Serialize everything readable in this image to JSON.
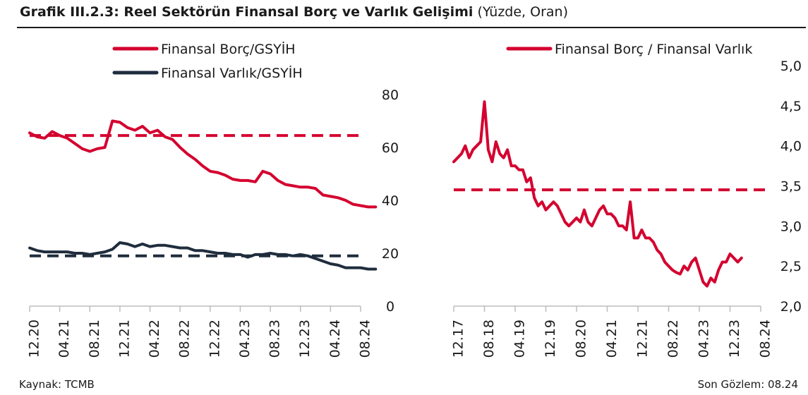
{
  "header": {
    "title": "Grafik III.2.3: Reel Sektörün Finansal Borç ve Varlık Gelişimi",
    "unit": "(Yüzde, Oran)"
  },
  "footer": {
    "source": "Kaynak: TCMB",
    "last_obs": "Son Gözlem: 08.24"
  },
  "colors": {
    "red": "#d4002f",
    "navy": "#1f2d3d",
    "grid": "#c8c8c8"
  },
  "chart_data": [
    {
      "type": "line",
      "x_ticks": [
        "12.20",
        "04.21",
        "08.21",
        "12.21",
        "04.22",
        "08.22",
        "12.22",
        "04.23",
        "08.23",
        "12.23",
        "04.24",
        "08.24"
      ],
      "y_ticks": [
        "0",
        "20",
        "40",
        "60",
        "80"
      ],
      "ylim": [
        0,
        80
      ],
      "grid": false,
      "legend_position": "top",
      "x_start": "2020-12",
      "series": [
        {
          "name": "Finansal Borç/GSYİH",
          "color": "#d4002f",
          "values": [
            65.5,
            64,
            63.5,
            66,
            64.5,
            63.5,
            61.5,
            59.5,
            58.5,
            59.5,
            60,
            70,
            69.5,
            67.5,
            66.5,
            68,
            65.5,
            66.5,
            64,
            63,
            60,
            57.5,
            55.5,
            53,
            51,
            50.5,
            49.5,
            48,
            47.5,
            47.5,
            47,
            51,
            50,
            47.5,
            46,
            45.5,
            45,
            45,
            44.5,
            42,
            41.5,
            41,
            40,
            38.5,
            38,
            37.5,
            37.5
          ]
        },
        {
          "name": "Finansal Varlık/GSYİH",
          "color": "#1f2d3d",
          "values": [
            22,
            21,
            20.5,
            20.5,
            20.5,
            20.5,
            20,
            20,
            19.5,
            20,
            20.5,
            21.5,
            24,
            23.5,
            22.5,
            23.5,
            22.5,
            23,
            23,
            22.5,
            22,
            22,
            21,
            21,
            20.5,
            20,
            20,
            19.5,
            19.5,
            18.5,
            19.5,
            19.5,
            20,
            19.5,
            19.5,
            19,
            19.5,
            19,
            18,
            17,
            16,
            15.5,
            14.5,
            14.5,
            14.5,
            14,
            14
          ]
        }
      ],
      "reference_lines": [
        {
          "color": "#d4002f",
          "value": 64.5
        },
        {
          "color": "#1f2d3d",
          "value": 19
        }
      ]
    },
    {
      "type": "line",
      "x_ticks": [
        "12.17",
        "08.18",
        "04.19",
        "12.19",
        "08.20",
        "04.21",
        "12.21",
        "08.22",
        "04.23",
        "12.23",
        "08.24"
      ],
      "y_ticks": [
        "2,0",
        "2,5",
        "3,0",
        "3,5",
        "4,0",
        "4,5",
        "5,0"
      ],
      "ylim": [
        2.0,
        5.0
      ],
      "grid": false,
      "legend_position": "top",
      "x_start": "2017-12",
      "series": [
        {
          "name": "Finansal Borç / Finansal Varlık",
          "color": "#d4002f",
          "values": [
            3.8,
            3.85,
            3.9,
            4.0,
            3.85,
            3.95,
            4.0,
            4.05,
            4.55,
            3.95,
            3.8,
            4.05,
            3.9,
            3.85,
            3.95,
            3.75,
            3.75,
            3.7,
            3.7,
            3.55,
            3.6,
            3.35,
            3.25,
            3.3,
            3.2,
            3.25,
            3.3,
            3.25,
            3.15,
            3.05,
            3.0,
            3.05,
            3.1,
            3.05,
            3.2,
            3.05,
            3.0,
            3.1,
            3.2,
            3.25,
            3.15,
            3.15,
            3.1,
            3.0,
            3.0,
            2.95,
            3.3,
            2.85,
            2.85,
            2.95,
            2.85,
            2.85,
            2.8,
            2.7,
            2.65,
            2.55,
            2.5,
            2.45,
            2.42,
            2.4,
            2.5,
            2.45,
            2.55,
            2.6,
            2.45,
            2.3,
            2.25,
            2.35,
            2.3,
            2.45,
            2.55,
            2.55,
            2.65,
            2.6,
            2.55,
            2.6
          ]
        }
      ],
      "reference_lines": [
        {
          "color": "#d4002f",
          "value": 3.45
        }
      ]
    }
  ]
}
